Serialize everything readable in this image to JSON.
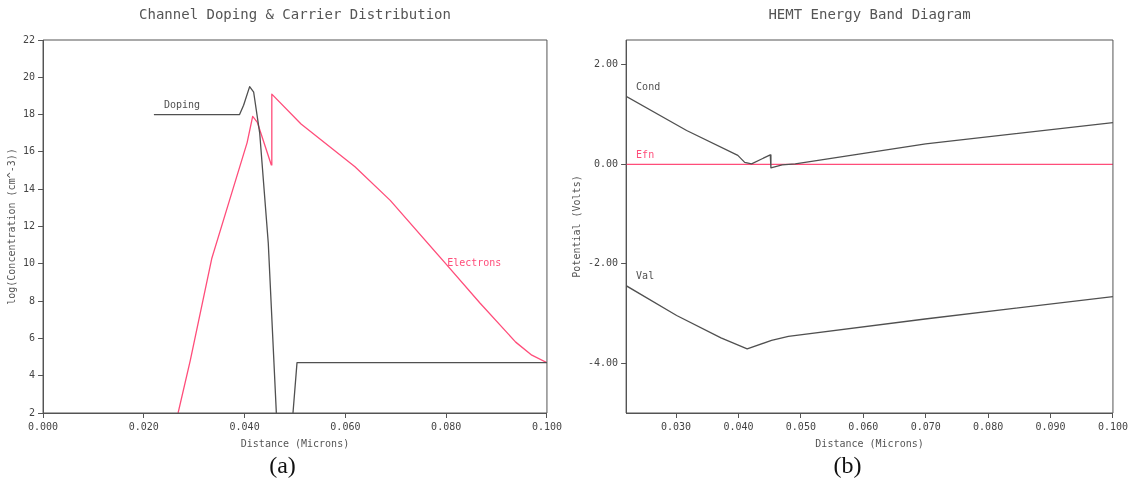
{
  "chart_data": [
    {
      "type": "line",
      "title": "Channel Doping & Carrier Distribution",
      "xlabel": "Distance (Microns)",
      "ylabel": "log(Concentration (cm^-3))",
      "xlim": [
        0,
        0.1
      ],
      "xticks": [
        {
          "value": 0,
          "label": "0.000"
        },
        {
          "value": 0.02,
          "label": "0.020"
        },
        {
          "value": 0.04,
          "label": "0.040"
        },
        {
          "value": 0.06,
          "label": "0.060"
        },
        {
          "value": 0.08,
          "label": "0.080"
        },
        {
          "value": 0.1,
          "label": "0.100"
        }
      ],
      "ylim": [
        2,
        22
      ],
      "yticks": [
        2,
        4,
        6,
        8,
        10,
        12,
        14,
        16,
        18,
        20,
        22
      ],
      "grid": false,
      "legend": false,
      "marker": "none",
      "line_style": "solid",
      "series": [
        {
          "name": "Doping",
          "color": "#505050",
          "x": [
            0.022,
            0.039,
            0.0398,
            0.041,
            0.0418,
            0.043,
            0.0447,
            0.0463,
            0.048,
            0.0496,
            0.0504,
            0.1
          ],
          "values": [
            18,
            18,
            18.5,
            19.5,
            19.2,
            17,
            11.1,
            2,
            null,
            2,
            4.7,
            4.7
          ]
        },
        {
          "color": "#ff4d7a",
          "x": [
            0.0268,
            0.0292,
            0.0335,
            0.037,
            0.0405,
            0.0416,
            0.0425,
            0.0453,
            0.0454,
            0.0512,
            0.0619,
            0.0689,
            0.0796,
            0.0867,
            0.0938,
            0.097,
            0.1
          ],
          "values": [
            2,
            4.8,
            10.3,
            13.4,
            16.5,
            17.9,
            17.6,
            15.3,
            19.1,
            17.5,
            15.2,
            13.4,
            10.1,
            7.9,
            5.8,
            5.1,
            4.7
          ]
        }
      ],
      "annotations": [
        {
          "text": "Electrons",
          "x": 0.0802,
          "y": 10
        },
        "(a)"
      ]
    },
    {
      "type": "line",
      "title": "HEMT Energy Band Diagram",
      "xlabel": "Distance (Microns)",
      "ylabel": "Potential (Volts)",
      "xlim": [
        0.022,
        0.1
      ],
      "xticks": [
        {
          "value": 0.03,
          "label": "0.030"
        },
        {
          "value": 0.04,
          "label": "0.040"
        },
        {
          "value": 0.05,
          "label": "0.050"
        },
        {
          "value": 0.06,
          "label": "0.060"
        },
        {
          "value": 0.07,
          "label": "0.070"
        },
        {
          "value": 0.08,
          "label": "0.080"
        },
        {
          "value": 0.09,
          "label": "0.090"
        },
        {
          "value": 0.1,
          "label": "0.100"
        }
      ],
      "ylim": [
        -5,
        2.5
      ],
      "yticks": [
        {
          "value": 2,
          "label": "2.00"
        },
        {
          "value": 0,
          "label": "0.00"
        },
        {
          "value": -2,
          "label": "-2.00"
        },
        {
          "value": -4,
          "label": "-4.00"
        }
      ],
      "grid": false,
      "legend": false,
      "marker": "none",
      "line_style": "solid",
      "series": [
        {
          "name": "Cond",
          "color": "#505050",
          "x": [
            0.022,
            0.0317,
            0.0399,
            0.041,
            0.0421,
            0.0451,
            0.0452,
            0.047,
            0.0491,
            0.07,
            0.1
          ],
          "values": [
            1.37,
            0.68,
            0.18,
            0.04,
            0.01,
            0.19,
            -0.07,
            -0.01,
            0.01,
            0.41,
            0.84
          ]
        },
        {
          "name": "Efn",
          "color": "#ff4d7a",
          "x": [
            0.022,
            0.1
          ],
          "values": [
            0,
            0
          ]
        },
        {
          "name": "Val",
          "color": "#505050",
          "x": [
            0.022,
            0.0301,
            0.0372,
            0.0414,
            0.0453,
            0.048,
            0.0699,
            0.1
          ],
          "values": [
            -2.44,
            -3.04,
            -3.49,
            -3.71,
            -3.54,
            -3.46,
            -3.11,
            -2.66
          ]
        }
      ],
      "annotations": [
        "(b)"
      ]
    }
  ]
}
